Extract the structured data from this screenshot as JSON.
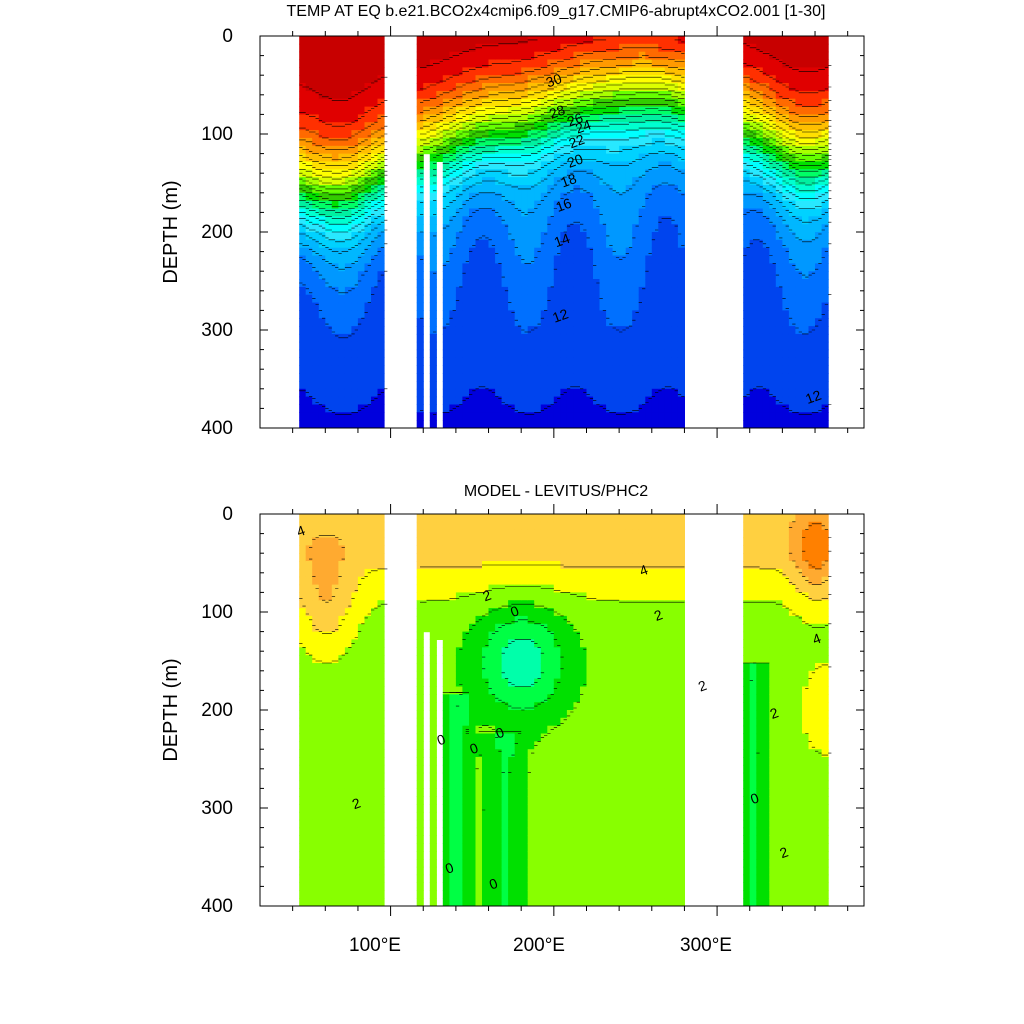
{
  "chart_data": [
    {
      "type": "contour",
      "title": "TEMP AT EQ b.e21.BCO2x4cmip6.f09_g17.CMIP6-abrupt4xCO2.001 [1-30]",
      "ylabel": "DEPTH (m)",
      "xlabel": "",
      "xlim": [
        20,
        390
      ],
      "ylim": [
        400,
        0
      ],
      "y_reversed": true,
      "y_ticks": [
        "0",
        "100",
        "200",
        "300",
        "400"
      ],
      "y_tick_values": [
        0,
        100,
        200,
        300,
        400
      ],
      "x_tick_values": [
        100,
        200,
        300
      ],
      "field": "surface",
      "surface": {
        "surf": 31,
        "base": 11,
        "scale": 95,
        "shoal": 70
      },
      "levels": [
        8,
        9,
        10,
        11,
        12,
        13,
        14,
        15,
        16,
        17,
        18,
        19,
        20,
        21,
        22,
        23,
        24,
        25,
        26,
        27,
        28,
        29,
        30,
        31
      ],
      "colors": [
        "#0000dd",
        "#0044ee",
        "#0070ff",
        "#0098ff",
        "#00b7ff",
        "#00d2ff",
        "#28e8ff",
        "#00ffff",
        "#00ffd0",
        "#00f0a0",
        "#00ff66",
        "#00e000",
        "#33cc00",
        "#66ff00",
        "#aaff00",
        "#ddff00",
        "#ffff00",
        "#ffe000",
        "#ffbf00",
        "#ff9a00",
        "#ff6a00",
        "#ff3000",
        "#e00000",
        "#c80000",
        "#a50000"
      ],
      "contour_labels": [
        {
          "text": "30",
          "x": 201,
          "y": 50
        },
        {
          "text": "28",
          "x": 203,
          "y": 82
        },
        {
          "text": "26",
          "x": 214,
          "y": 90
        },
        {
          "text": "24",
          "x": 219,
          "y": 97
        },
        {
          "text": "22",
          "x": 215,
          "y": 112
        },
        {
          "text": "20",
          "x": 214,
          "y": 132
        },
        {
          "text": "18",
          "x": 210,
          "y": 152
        },
        {
          "text": "16",
          "x": 207,
          "y": 177
        },
        {
          "text": "14",
          "x": 206,
          "y": 213
        },
        {
          "text": "12",
          "x": 205,
          "y": 290
        },
        {
          "text": "12",
          "x": 360,
          "y": 373
        }
      ]
    },
    {
      "type": "contour",
      "title": "MODEL - LEVITUS/PHC2",
      "ylabel": "DEPTH (m)",
      "xlabel": "",
      "xlim": [
        20,
        390
      ],
      "ylim": [
        400,
        0
      ],
      "y_reversed": true,
      "y_ticks": [
        "0",
        "100",
        "200",
        "300",
        "400"
      ],
      "y_tick_values": [
        0,
        100,
        200,
        300,
        400
      ],
      "x_ticks": [
        "100°E",
        "200°E",
        "300°E"
      ],
      "x_tick_values": [
        100,
        200,
        300
      ],
      "field": "difference",
      "levels": [
        -1,
        0,
        1,
        2,
        3,
        4,
        5,
        6
      ],
      "colors": [
        "#00ffd0",
        "#00ffaa",
        "#00ff44",
        "#00e000",
        "#88ff00",
        "#ffff00",
        "#ffd040",
        "#ffaa30",
        "#ff8000"
      ],
      "contour_labels": [
        {
          "text": "4",
          "x": 46,
          "y": 22
        },
        {
          "text": "2",
          "x": 160,
          "y": 88
        },
        {
          "text": "0",
          "x": 177,
          "y": 104
        },
        {
          "text": "2",
          "x": 265,
          "y": 108
        },
        {
          "text": "4",
          "x": 256,
          "y": 62
        },
        {
          "text": "4",
          "x": 362,
          "y": 132
        },
        {
          "text": "2",
          "x": 292,
          "y": 180
        },
        {
          "text": "2",
          "x": 336,
          "y": 208
        },
        {
          "text": "0",
          "x": 132,
          "y": 235
        },
        {
          "text": "0",
          "x": 152,
          "y": 244
        },
        {
          "text": "0",
          "x": 168,
          "y": 228
        },
        {
          "text": "2",
          "x": 80,
          "y": 300
        },
        {
          "text": "0",
          "x": 324,
          "y": 295
        },
        {
          "text": "2",
          "x": 342,
          "y": 350
        },
        {
          "text": "0",
          "x": 137,
          "y": 366
        },
        {
          "text": "0",
          "x": 164,
          "y": 382
        }
      ]
    }
  ]
}
